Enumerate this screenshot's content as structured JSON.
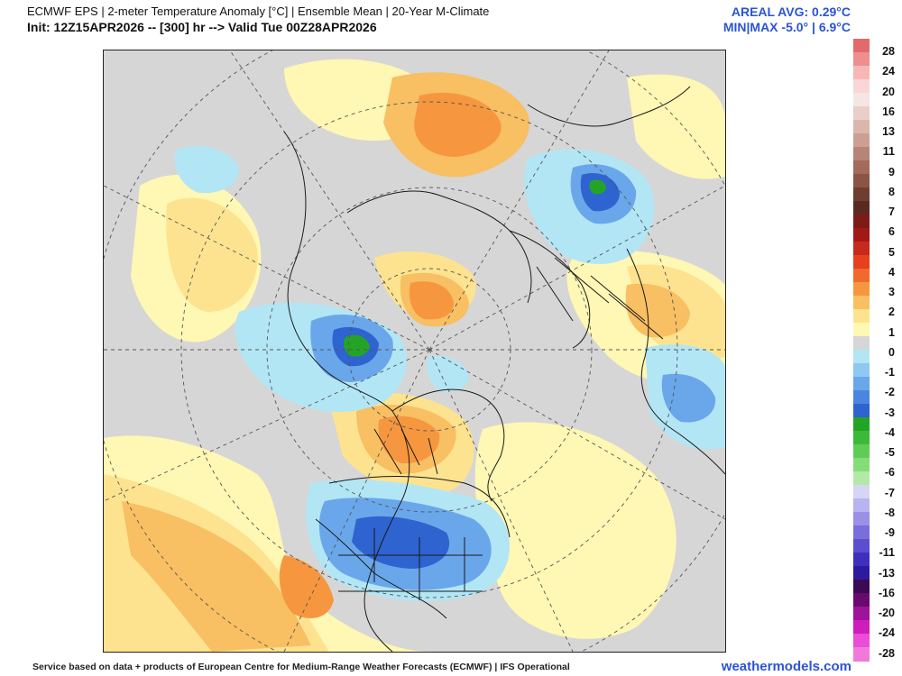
{
  "header": {
    "title": "ECMWF EPS | 2-meter Temperature Anomaly [°C] | Ensemble Mean | 20-Year M-Climate",
    "init_line": "Init: 12Z15APR2026 -- [300] hr --> Valid Tue 00Z28APR2026",
    "areal_avg": "AREAL AVG: 0.29°C",
    "min_max": "MIN|MAX -5.0° | 6.9°C"
  },
  "legend": {
    "labels": [
      "28",
      "24",
      "20",
      "16",
      "13",
      "11",
      "9",
      "8",
      "7",
      "6",
      "5",
      "4",
      "3",
      "2",
      "1",
      "0",
      "-1",
      "-2",
      "-3",
      "-4",
      "-5",
      "-6",
      "-7",
      "-8",
      "-9",
      "-11",
      "-13",
      "-16",
      "-20",
      "-24",
      "-28"
    ],
    "colors": [
      "#e36a6a",
      "#ee8e8e",
      "#f7b7b7",
      "#f9d7d7",
      "#f4e6e4",
      "#e9cfc9",
      "#dcb6ad",
      "#cd9f94",
      "#b78478",
      "#a46a5c",
      "#8b5445",
      "#6e3e30",
      "#5a2a22",
      "#7d1b16",
      "#a31915",
      "#c72a1c",
      "#e6401f",
      "#f06a2e",
      "#f6973f",
      "#f8bf63",
      "#fde38f",
      "#fff7b4",
      "#d6d6d6",
      "#b2e6f5",
      "#8fc8f0",
      "#6aa7ea",
      "#4a86df",
      "#2e63d0",
      "#24a425",
      "#3bba37",
      "#5fcc56",
      "#87dc7a",
      "#b2eaa5",
      "#d7d5f5",
      "#b9b3ef",
      "#9b90e6",
      "#7a6edd",
      "#5c4fcf",
      "#3f2fbf",
      "#2e1a9e",
      "#3b0a52",
      "#6a0a6f",
      "#a0129a",
      "#cf1cbd",
      "#e94ed4",
      "#f279dc"
    ],
    "icons": {
      "map": "polar-stereographic-map"
    }
  },
  "footer": {
    "credit": "Service based on data + products of European Centre for Medium-Range Weather Forecasts (ECMWF) | IFS Operational",
    "brand": "weathermodels.com"
  }
}
